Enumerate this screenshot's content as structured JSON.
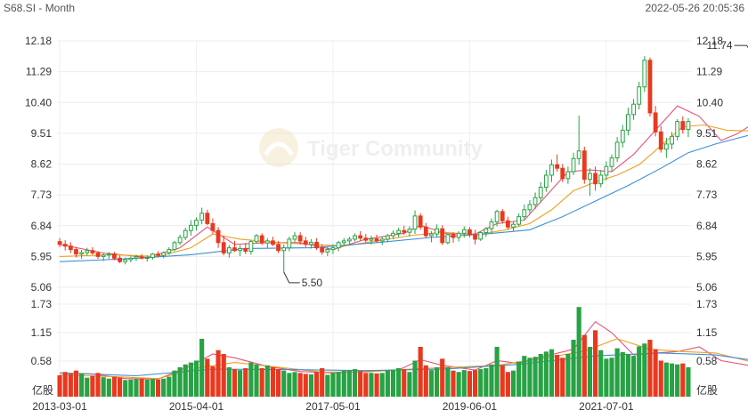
{
  "header": {
    "symbol_period": "S68.SI - Month",
    "timestamp": "2022-05-26 20:05:36"
  },
  "watermark": "Tiger Community",
  "chart_data": [
    {
      "type": "candlestick",
      "title": "",
      "ylim": [
        5.06,
        12.18
      ],
      "ytick_labels": [
        "12.18",
        "11.29",
        "10.40",
        "9.51",
        "8.62",
        "7.73",
        "6.84",
        "5.95",
        "5.06"
      ],
      "annotations": [
        {
          "label": "11.74",
          "x_index": 127,
          "value": 11.74
        },
        {
          "label": "5.50",
          "x_index": 41,
          "value": 5.5
        }
      ],
      "colors": {
        "up": "#27a244",
        "down": "#e8391f",
        "ma_short": "#e8527a",
        "ma_mid": "#f0a020",
        "ma_long": "#3a8fd8"
      },
      "grid": true
    },
    {
      "type": "bar",
      "title": "",
      "ylabel": "亿股",
      "ylim": [
        0,
        1.95
      ],
      "ytick_labels": [
        "1.73",
        "1.15",
        "0.58"
      ],
      "colors": {
        "up": "#27a244",
        "down": "#e8391f",
        "ma_short": "#e8527a",
        "ma_mid": "#f0a020",
        "ma_long": "#3a8fd8"
      }
    }
  ],
  "x_axis": {
    "tick_labels": [
      "2013-03-01",
      "2015-04-01",
      "2017-05-01",
      "2019-06-01",
      "2021-07-01"
    ],
    "tick_indices": [
      0,
      25,
      50,
      75,
      100
    ]
  },
  "candles": [
    [
      6.38,
      6.48,
      6.22,
      6.3,
      0.45
    ],
    [
      6.3,
      6.42,
      6.12,
      6.25,
      0.52
    ],
    [
      6.25,
      6.36,
      6.05,
      6.15,
      0.48
    ],
    [
      6.15,
      6.22,
      5.92,
      6.02,
      0.55
    ],
    [
      6.02,
      6.14,
      5.88,
      6.06,
      0.49
    ],
    [
      6.06,
      6.2,
      5.98,
      6.12,
      0.4
    ],
    [
      6.12,
      6.22,
      6.0,
      6.05,
      0.44
    ],
    [
      6.05,
      6.1,
      5.88,
      5.95,
      0.5
    ],
    [
      5.95,
      6.04,
      5.82,
      5.99,
      0.41
    ],
    [
      5.99,
      6.08,
      5.88,
      6.02,
      0.38
    ],
    [
      6.02,
      6.08,
      5.84,
      5.9,
      0.42
    ],
    [
      5.9,
      5.98,
      5.76,
      5.8,
      0.4
    ],
    [
      5.8,
      5.92,
      5.72,
      5.86,
      0.35
    ],
    [
      5.86,
      5.95,
      5.78,
      5.9,
      0.36
    ],
    [
      5.9,
      6.0,
      5.82,
      5.94,
      0.37
    ],
    [
      5.94,
      6.02,
      5.86,
      5.9,
      0.38
    ],
    [
      5.9,
      5.98,
      5.8,
      5.92,
      0.36
    ],
    [
      5.92,
      6.05,
      5.86,
      6.02,
      0.37
    ],
    [
      6.02,
      6.1,
      5.92,
      5.98,
      0.36
    ],
    [
      5.98,
      6.1,
      5.9,
      6.06,
      0.38
    ],
    [
      6.06,
      6.22,
      6.0,
      6.15,
      0.42
    ],
    [
      6.15,
      6.4,
      6.1,
      6.35,
      0.55
    ],
    [
      6.35,
      6.58,
      6.28,
      6.5,
      0.62
    ],
    [
      6.5,
      6.78,
      6.42,
      6.7,
      0.68
    ],
    [
      6.7,
      7.0,
      6.55,
      6.85,
      0.72
    ],
    [
      6.85,
      7.08,
      6.7,
      7.0,
      0.76
    ],
    [
      7.0,
      7.36,
      6.88,
      7.2,
      1.22
    ],
    [
      7.2,
      7.3,
      6.85,
      6.9,
      0.8
    ],
    [
      6.9,
      7.05,
      6.6,
      6.7,
      0.64
    ],
    [
      6.7,
      6.8,
      6.2,
      6.35,
      0.98
    ],
    [
      6.35,
      6.55,
      5.98,
      6.05,
      0.9
    ],
    [
      6.05,
      6.28,
      5.92,
      6.2,
      0.62
    ],
    [
      6.2,
      6.4,
      6.08,
      6.12,
      0.58
    ],
    [
      6.12,
      6.28,
      5.96,
      6.18,
      0.56
    ],
    [
      6.18,
      6.34,
      6.02,
      6.1,
      0.6
    ],
    [
      6.1,
      6.42,
      6.0,
      6.38,
      0.72
    ],
    [
      6.38,
      6.6,
      6.32,
      6.55,
      0.68
    ],
    [
      6.55,
      6.62,
      6.28,
      6.34,
      0.6
    ],
    [
      6.34,
      6.48,
      6.2,
      6.4,
      0.66
    ],
    [
      6.4,
      6.52,
      6.25,
      6.3,
      0.62
    ],
    [
      6.3,
      6.4,
      6.05,
      6.12,
      0.58
    ],
    [
      6.12,
      6.3,
      5.5,
      6.2,
      0.55
    ],
    [
      6.2,
      6.52,
      6.1,
      6.45,
      0.5
    ],
    [
      6.45,
      6.66,
      6.36,
      6.55,
      0.52
    ],
    [
      6.55,
      6.65,
      6.3,
      6.4,
      0.5
    ],
    [
      6.4,
      6.52,
      6.22,
      6.3,
      0.48
    ],
    [
      6.3,
      6.45,
      6.18,
      6.36,
      0.47
    ],
    [
      6.36,
      6.48,
      6.14,
      6.2,
      0.52
    ],
    [
      6.2,
      6.3,
      6.0,
      6.08,
      0.6
    ],
    [
      6.08,
      6.22,
      5.96,
      6.15,
      0.46
    ],
    [
      6.15,
      6.3,
      6.02,
      6.2,
      0.5
    ],
    [
      6.2,
      6.4,
      6.1,
      6.35,
      0.52
    ],
    [
      6.35,
      6.48,
      6.26,
      6.4,
      0.55
    ],
    [
      6.4,
      6.52,
      6.28,
      6.45,
      0.56
    ],
    [
      6.45,
      6.62,
      6.38,
      6.55,
      0.58
    ],
    [
      6.55,
      6.68,
      6.4,
      6.48,
      0.54
    ],
    [
      6.48,
      6.6,
      6.35,
      6.42,
      0.5
    ],
    [
      6.42,
      6.55,
      6.3,
      6.46,
      0.5
    ],
    [
      6.46,
      6.58,
      6.35,
      6.4,
      0.49
    ],
    [
      6.4,
      6.52,
      6.28,
      6.45,
      0.5
    ],
    [
      6.45,
      6.6,
      6.36,
      6.55,
      0.56
    ],
    [
      6.55,
      6.7,
      6.45,
      6.62,
      0.57
    ],
    [
      6.62,
      6.78,
      6.5,
      6.7,
      0.6
    ],
    [
      6.7,
      6.84,
      6.58,
      6.65,
      0.58
    ],
    [
      6.65,
      6.82,
      6.52,
      6.74,
      0.52
    ],
    [
      6.74,
      7.28,
      6.6,
      7.12,
      0.76
    ],
    [
      7.12,
      7.2,
      6.72,
      6.8,
      1.05
    ],
    [
      6.8,
      6.92,
      6.48,
      6.55,
      0.66
    ],
    [
      6.55,
      6.68,
      6.36,
      6.6,
      0.56
    ],
    [
      6.6,
      6.88,
      6.5,
      6.75,
      0.62
    ],
    [
      6.75,
      6.85,
      6.28,
      6.35,
      0.8
    ],
    [
      6.35,
      6.62,
      6.3,
      6.58,
      0.62
    ],
    [
      6.58,
      6.65,
      6.35,
      6.5,
      0.55
    ],
    [
      6.5,
      6.68,
      6.38,
      6.62,
      0.52
    ],
    [
      6.62,
      6.82,
      6.5,
      6.72,
      0.56
    ],
    [
      6.72,
      6.8,
      6.5,
      6.58,
      0.54
    ],
    [
      6.58,
      6.72,
      6.3,
      6.45,
      0.56
    ],
    [
      6.45,
      6.68,
      6.4,
      6.64,
      0.58
    ],
    [
      6.64,
      6.8,
      6.52,
      6.75,
      0.6
    ],
    [
      6.75,
      7.05,
      6.62,
      6.95,
      0.68
    ],
    [
      6.95,
      7.3,
      6.82,
      7.25,
      1.05
    ],
    [
      7.25,
      7.32,
      6.9,
      6.98,
      0.66
    ],
    [
      6.98,
      7.1,
      6.72,
      6.8,
      0.52
    ],
    [
      6.8,
      6.95,
      6.68,
      6.88,
      0.55
    ],
    [
      6.88,
      7.2,
      6.82,
      7.1,
      0.74
    ],
    [
      7.1,
      7.45,
      7.0,
      7.3,
      0.86
    ],
    [
      7.3,
      7.58,
      7.18,
      7.45,
      0.82
    ],
    [
      7.45,
      7.8,
      7.32,
      7.65,
      0.84
    ],
    [
      7.65,
      8.1,
      7.5,
      7.95,
      0.9
    ],
    [
      7.95,
      8.45,
      7.82,
      8.3,
      0.95
    ],
    [
      8.3,
      8.75,
      8.1,
      8.6,
      1.0
    ],
    [
      8.6,
      8.9,
      8.4,
      8.5,
      0.88
    ],
    [
      8.5,
      8.62,
      8.1,
      8.2,
      0.82
    ],
    [
      8.2,
      8.55,
      8.05,
      8.4,
      0.9
    ],
    [
      8.4,
      8.95,
      8.3,
      8.78,
      1.2
    ],
    [
      8.78,
      10.02,
      8.6,
      9.0,
      1.89
    ],
    [
      9.0,
      9.12,
      8.05,
      8.18,
      1.3
    ],
    [
      8.18,
      8.5,
      7.7,
      8.35,
      1.05
    ],
    [
      8.35,
      8.55,
      7.85,
      8.05,
      1.4
    ],
    [
      8.05,
      8.45,
      7.95,
      8.3,
      0.98
    ],
    [
      8.3,
      8.7,
      8.15,
      8.55,
      0.8
    ],
    [
      8.55,
      8.9,
      8.4,
      8.8,
      0.82
    ],
    [
      8.8,
      9.4,
      8.68,
      9.25,
      1.02
    ],
    [
      9.25,
      9.75,
      9.1,
      9.6,
      0.94
    ],
    [
      9.6,
      10.25,
      9.45,
      10.05,
      0.9
    ],
    [
      10.05,
      10.5,
      9.9,
      10.35,
      0.86
    ],
    [
      10.35,
      11.0,
      10.2,
      10.85,
      1.06
    ],
    [
      10.85,
      11.74,
      10.7,
      11.62,
      1.12
    ],
    [
      11.62,
      11.7,
      10.0,
      10.1,
      1.2
    ],
    [
      10.1,
      10.3,
      9.42,
      9.55,
      1.0
    ],
    [
      9.55,
      9.72,
      8.95,
      9.05,
      0.76
    ],
    [
      9.05,
      9.38,
      8.8,
      9.2,
      0.72
    ],
    [
      9.2,
      9.55,
      9.05,
      9.42,
      0.7
    ],
    [
      9.42,
      9.92,
      9.3,
      9.85,
      0.68
    ],
    [
      9.85,
      10.0,
      9.5,
      9.62,
      0.7
    ],
    [
      9.62,
      9.95,
      9.4,
      9.85,
      0.62
    ]
  ],
  "moving_averages": {
    "price": [
      {
        "name": "ma_short",
        "color": "#e8527a",
        "points": [
          [
            0,
            6.3
          ],
          [
            8,
            6.05
          ],
          [
            16,
            5.92
          ],
          [
            22,
            6.2
          ],
          [
            27,
            6.8
          ],
          [
            32,
            6.3
          ],
          [
            38,
            6.35
          ],
          [
            44,
            6.35
          ],
          [
            50,
            6.15
          ],
          [
            56,
            6.45
          ],
          [
            63,
            6.62
          ],
          [
            66,
            6.85
          ],
          [
            71,
            6.6
          ],
          [
            76,
            6.6
          ],
          [
            80,
            6.9
          ],
          [
            85,
            7.0
          ],
          [
            89,
            7.7
          ],
          [
            93,
            8.4
          ],
          [
            97,
            8.45
          ],
          [
            101,
            8.4
          ],
          [
            105,
            8.9
          ],
          [
            109,
            9.6
          ],
          [
            113,
            10.3
          ],
          [
            117,
            10.0
          ],
          [
            121,
            9.3
          ],
          [
            124,
            9.5
          ],
          [
            126,
            9.7
          ]
        ]
      },
      {
        "name": "ma_mid",
        "color": "#f0a020",
        "points": [
          [
            0,
            5.95
          ],
          [
            10,
            6.0
          ],
          [
            18,
            5.95
          ],
          [
            24,
            6.2
          ],
          [
            28,
            6.6
          ],
          [
            33,
            6.45
          ],
          [
            40,
            6.35
          ],
          [
            46,
            6.3
          ],
          [
            52,
            6.25
          ],
          [
            58,
            6.4
          ],
          [
            64,
            6.55
          ],
          [
            70,
            6.65
          ],
          [
            76,
            6.58
          ],
          [
            81,
            6.7
          ],
          [
            86,
            6.9
          ],
          [
            90,
            7.3
          ],
          [
            94,
            7.85
          ],
          [
            98,
            8.1
          ],
          [
            102,
            8.3
          ],
          [
            106,
            8.6
          ],
          [
            110,
            9.15
          ],
          [
            114,
            9.7
          ],
          [
            118,
            9.75
          ],
          [
            122,
            9.6
          ],
          [
            126,
            9.58
          ]
        ]
      },
      {
        "name": "ma_long",
        "color": "#3a8fd8",
        "points": [
          [
            0,
            5.8
          ],
          [
            12,
            5.88
          ],
          [
            24,
            6.0
          ],
          [
            34,
            6.18
          ],
          [
            46,
            6.2
          ],
          [
            58,
            6.35
          ],
          [
            68,
            6.5
          ],
          [
            78,
            6.6
          ],
          [
            86,
            6.72
          ],
          [
            92,
            7.1
          ],
          [
            98,
            7.55
          ],
          [
            104,
            8.0
          ],
          [
            110,
            8.5
          ],
          [
            115,
            8.95
          ],
          [
            120,
            9.2
          ],
          [
            126,
            9.45
          ]
        ]
      }
    ],
    "volume": [
      {
        "name": "ma_short",
        "color": "#e8527a",
        "points": [
          [
            0,
            0.5
          ],
          [
            6,
            0.48
          ],
          [
            12,
            0.38
          ],
          [
            18,
            0.37
          ],
          [
            24,
            0.65
          ],
          [
            28,
            0.9
          ],
          [
            32,
            0.82
          ],
          [
            38,
            0.64
          ],
          [
            44,
            0.53
          ],
          [
            50,
            0.5
          ],
          [
            56,
            0.53
          ],
          [
            62,
            0.56
          ],
          [
            66,
            0.78
          ],
          [
            70,
            0.66
          ],
          [
            76,
            0.56
          ],
          [
            80,
            0.76
          ],
          [
            84,
            0.7
          ],
          [
            88,
            0.83
          ],
          [
            94,
            1.0
          ],
          [
            98,
            1.58
          ],
          [
            101,
            1.35
          ],
          [
            105,
            0.88
          ],
          [
            109,
            0.92
          ],
          [
            113,
            0.95
          ],
          [
            117,
            1.05
          ],
          [
            121,
            0.76
          ],
          [
            126,
            0.66
          ]
        ]
      },
      {
        "name": "ma_mid",
        "color": "#f0a020",
        "points": [
          [
            0,
            0.46
          ],
          [
            10,
            0.42
          ],
          [
            18,
            0.38
          ],
          [
            26,
            0.62
          ],
          [
            32,
            0.72
          ],
          [
            40,
            0.62
          ],
          [
            48,
            0.52
          ],
          [
            56,
            0.52
          ],
          [
            64,
            0.58
          ],
          [
            72,
            0.62
          ],
          [
            80,
            0.66
          ],
          [
            88,
            0.8
          ],
          [
            96,
            0.96
          ],
          [
            102,
            1.22
          ],
          [
            108,
            1.0
          ],
          [
            114,
            0.95
          ],
          [
            120,
            0.92
          ],
          [
            126,
            0.75
          ]
        ]
      },
      {
        "name": "ma_long",
        "color": "#3a8fd8",
        "points": [
          [
            0,
            0.5
          ],
          [
            14,
            0.44
          ],
          [
            28,
            0.58
          ],
          [
            42,
            0.57
          ],
          [
            56,
            0.55
          ],
          [
            70,
            0.58
          ],
          [
            84,
            0.68
          ],
          [
            98,
            0.86
          ],
          [
            110,
            0.92
          ],
          [
            120,
            0.88
          ],
          [
            126,
            0.78
          ]
        ]
      }
    ]
  }
}
